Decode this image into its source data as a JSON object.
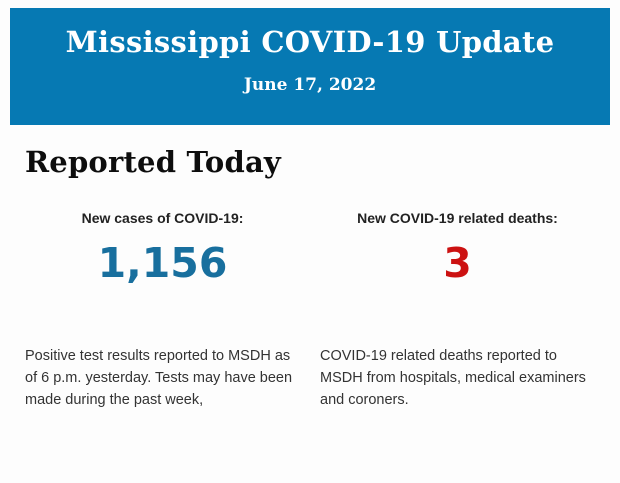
{
  "header": {
    "title": "Mississippi COVID-19 Update",
    "date": "June 17, 2022",
    "background_color": "#0679b3",
    "text_color": "#ffffff"
  },
  "report": {
    "section_title": "Reported Today",
    "cases": {
      "label": "New cases of COVID-19:",
      "value": "1,156",
      "value_color": "#186f9e",
      "description": "Positive test results reported to MSDH as of 6 p.m. yesterday. Tests may have been made during the past week,"
    },
    "deaths": {
      "label": "New COVID-19 related deaths:",
      "value": "3",
      "value_color": "#cc1212",
      "description": "COVID-19 related deaths reported to MSDH from hospitals, medical examiners and coroners."
    }
  }
}
